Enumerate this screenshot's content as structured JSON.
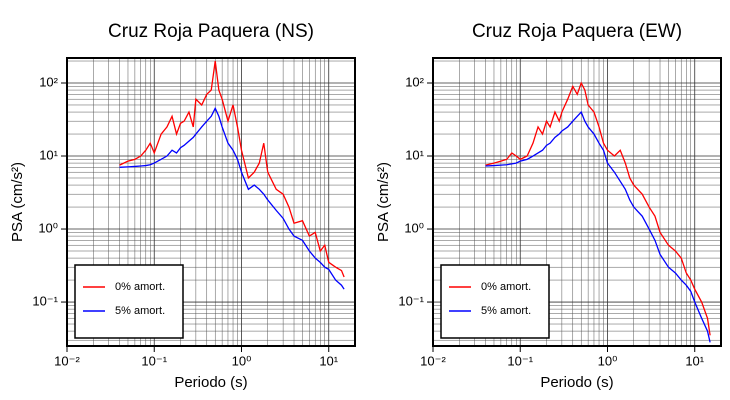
{
  "chart_data": [
    {
      "type": "line",
      "title": "Cruz Roja Paquera (NS)",
      "x_label": "Periodo (s)",
      "y_label": "PSA (cm/s²)",
      "log_x": true,
      "log_y": true,
      "grid": true,
      "legend_position": "lower left",
      "xlim": [
        0.01,
        20
      ],
      "ylim": [
        0.025,
        220
      ],
      "xticks": [
        {
          "value": 0.01,
          "label": "10⁻²"
        },
        {
          "value": 0.1,
          "label": "10⁻¹"
        },
        {
          "value": 1,
          "label": "10⁰"
        },
        {
          "value": 10,
          "label": "10¹"
        }
      ],
      "yticks": [
        {
          "value": 0.1,
          "label": "10⁻¹"
        },
        {
          "value": 1,
          "label": "10⁰"
        },
        {
          "value": 10,
          "label": "10¹"
        },
        {
          "value": 100,
          "label": "10²"
        }
      ],
      "xminorticks": [
        0.02,
        0.03,
        0.04,
        0.05,
        0.06,
        0.07,
        0.08,
        0.09,
        0.2,
        0.3,
        0.4,
        0.5,
        0.6,
        0.7,
        0.8,
        0.9,
        2,
        3,
        4,
        5,
        6,
        7,
        8,
        9,
        20
      ],
      "yminorticks": [
        0.03,
        0.04,
        0.05,
        0.06,
        0.07,
        0.08,
        0.09,
        0.2,
        0.3,
        0.4,
        0.5,
        0.6,
        0.7,
        0.8,
        0.9,
        2,
        3,
        4,
        5,
        6,
        7,
        8,
        9,
        20,
        30,
        40,
        50,
        60,
        70,
        80,
        90,
        200
      ],
      "x": [
        0.04,
        0.05,
        0.06,
        0.07,
        0.08,
        0.09,
        0.1,
        0.12,
        0.14,
        0.16,
        0.18,
        0.2,
        0.22,
        0.25,
        0.28,
        0.3,
        0.35,
        0.4,
        0.45,
        0.5,
        0.55,
        0.6,
        0.7,
        0.8,
        0.9,
        1.0,
        1.2,
        1.4,
        1.6,
        1.8,
        2.0,
        2.5,
        3.0,
        3.5,
        4.0,
        5.0,
        6.0,
        7.0,
        8.0,
        9.0,
        10,
        12,
        14,
        15
      ],
      "series": [
        {
          "name": "0% amort.",
          "color": "#ff0000",
          "values": [
            7.5,
            8.5,
            9,
            10,
            12,
            15,
            11,
            20,
            25,
            35,
            20,
            28,
            30,
            40,
            25,
            60,
            50,
            70,
            80,
            200,
            80,
            60,
            30,
            50,
            25,
            12,
            5,
            6,
            8,
            15,
            6,
            3.5,
            3,
            2,
            1.2,
            1.3,
            0.8,
            0.9,
            0.5,
            0.6,
            0.35,
            0.3,
            0.27,
            0.22
          ]
        },
        {
          "name": "5% amort.",
          "color": "#0000ff",
          "values": [
            7,
            7.1,
            7.2,
            7.3,
            7.4,
            7.6,
            8,
            9,
            10,
            12,
            11,
            13,
            14,
            16,
            18,
            20,
            25,
            30,
            35,
            45,
            35,
            25,
            15,
            12,
            9,
            6,
            3.5,
            4,
            3.5,
            3,
            2.5,
            1.8,
            1.4,
            1,
            0.8,
            0.7,
            0.5,
            0.4,
            0.35,
            0.3,
            0.28,
            0.2,
            0.17,
            0.15
          ]
        }
      ]
    },
    {
      "type": "line",
      "title": "Cruz Roja Paquera (EW)",
      "x_label": "Periodo (s)",
      "y_label": "PSA (cm/s²)",
      "log_x": true,
      "log_y": true,
      "grid": true,
      "legend_position": "lower left",
      "xlim": [
        0.01,
        20
      ],
      "ylim": [
        0.025,
        220
      ],
      "xticks": [
        {
          "value": 0.01,
          "label": "10⁻²"
        },
        {
          "value": 0.1,
          "label": "10⁻¹"
        },
        {
          "value": 1,
          "label": "10⁰"
        },
        {
          "value": 10,
          "label": "10¹"
        }
      ],
      "yticks": [
        {
          "value": 0.1,
          "label": "10⁻¹"
        },
        {
          "value": 1,
          "label": "10⁰"
        },
        {
          "value": 10,
          "label": "10¹"
        },
        {
          "value": 100,
          "label": "10²"
        }
      ],
      "xminorticks": [
        0.02,
        0.03,
        0.04,
        0.05,
        0.06,
        0.07,
        0.08,
        0.09,
        0.2,
        0.3,
        0.4,
        0.5,
        0.6,
        0.7,
        0.8,
        0.9,
        2,
        3,
        4,
        5,
        6,
        7,
        8,
        9,
        20
      ],
      "yminorticks": [
        0.03,
        0.04,
        0.05,
        0.06,
        0.07,
        0.08,
        0.09,
        0.2,
        0.3,
        0.4,
        0.5,
        0.6,
        0.7,
        0.8,
        0.9,
        2,
        3,
        4,
        5,
        6,
        7,
        8,
        9,
        20,
        30,
        40,
        50,
        60,
        70,
        80,
        90,
        200
      ],
      "x": [
        0.04,
        0.05,
        0.06,
        0.07,
        0.08,
        0.09,
        0.1,
        0.12,
        0.14,
        0.16,
        0.18,
        0.2,
        0.22,
        0.25,
        0.28,
        0.3,
        0.35,
        0.4,
        0.45,
        0.5,
        0.55,
        0.6,
        0.7,
        0.8,
        0.9,
        1.0,
        1.2,
        1.4,
        1.6,
        1.8,
        2.0,
        2.5,
        3.0,
        3.5,
        4.0,
        5.0,
        6.0,
        7.0,
        8.0,
        9.0,
        10,
        12,
        14,
        15
      ],
      "series": [
        {
          "name": "0% amort.",
          "color": "#ff0000",
          "values": [
            7.5,
            8,
            8.5,
            9,
            11,
            10,
            9,
            10,
            15,
            25,
            20,
            30,
            25,
            40,
            30,
            40,
            60,
            90,
            70,
            100,
            80,
            50,
            40,
            25,
            15,
            12,
            10,
            12,
            8,
            5,
            4,
            3,
            2,
            1.5,
            0.9,
            0.6,
            0.5,
            0.4,
            0.25,
            0.2,
            0.15,
            0.1,
            0.06,
            0.035
          ]
        },
        {
          "name": "5% amort.",
          "color": "#0000ff",
          "values": [
            7.3,
            7.4,
            7.5,
            7.6,
            7.8,
            8,
            8.5,
            9,
            10,
            11,
            12,
            14,
            15,
            18,
            20,
            22,
            25,
            30,
            35,
            40,
            30,
            25,
            20,
            15,
            12,
            8,
            6,
            4.5,
            3.5,
            2.5,
            2,
            1.5,
            1,
            0.7,
            0.45,
            0.3,
            0.25,
            0.2,
            0.17,
            0.14,
            0.1,
            0.06,
            0.04,
            0.028
          ]
        }
      ]
    }
  ]
}
